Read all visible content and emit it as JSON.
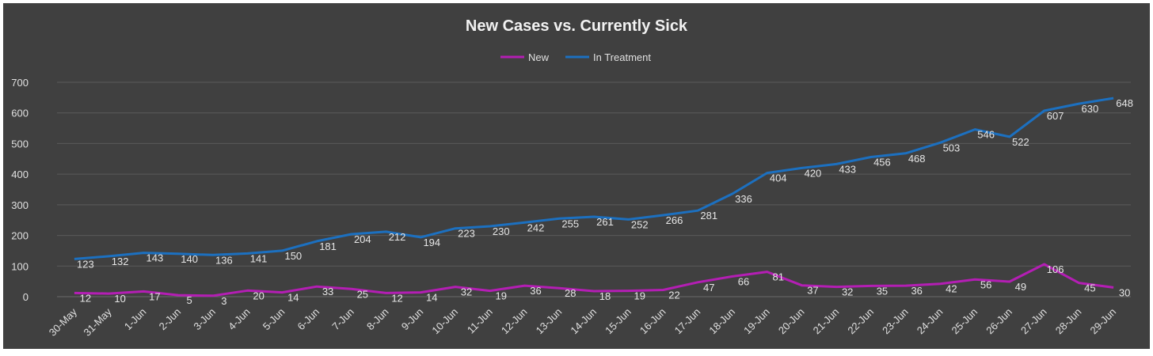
{
  "chart_data": {
    "type": "line",
    "title": "New Cases vs. Currently Sick",
    "xlabel": "",
    "ylabel": "",
    "ylim": [
      0,
      700
    ],
    "yticks": [
      0,
      100,
      200,
      300,
      400,
      500,
      600,
      700
    ],
    "grid": true,
    "legend_position": "top-center",
    "background_color": "#404040",
    "categories": [
      "30-May",
      "31-May",
      "1-Jun",
      "2-Jun",
      "3-Jun",
      "4-Jun",
      "5-Jun",
      "6-Jun",
      "7-Jun",
      "8-Jun",
      "9-Jun",
      "10-Jun",
      "11-Jun",
      "12-Jun",
      "13-Jun",
      "14-Jun",
      "15-Jun",
      "16-Jun",
      "17-Jun",
      "18-Jun",
      "19-Jun",
      "20-Jun",
      "21-Jun",
      "22-Jun",
      "23-Jun",
      "24-Jun",
      "25-Jun",
      "26-Jun",
      "27-Jun",
      "28-Jun",
      "29-Jun"
    ],
    "series": [
      {
        "name": "New",
        "color": "#b41eb4",
        "values": [
          12,
          10,
          17,
          5,
          3,
          20,
          14,
          33,
          25,
          12,
          14,
          32,
          19,
          36,
          28,
          18,
          19,
          22,
          47,
          66,
          81,
          37,
          32,
          35,
          36,
          42,
          56,
          49,
          106,
          45,
          30
        ]
      },
      {
        "name": "In Treatment",
        "color": "#1c70c0",
        "values": [
          123,
          132,
          143,
          140,
          136,
          141,
          150,
          181,
          204,
          212,
          194,
          223,
          230,
          242,
          255,
          261,
          252,
          266,
          281,
          336,
          404,
          420,
          433,
          456,
          468,
          503,
          546,
          522,
          607,
          630,
          648
        ]
      }
    ]
  }
}
